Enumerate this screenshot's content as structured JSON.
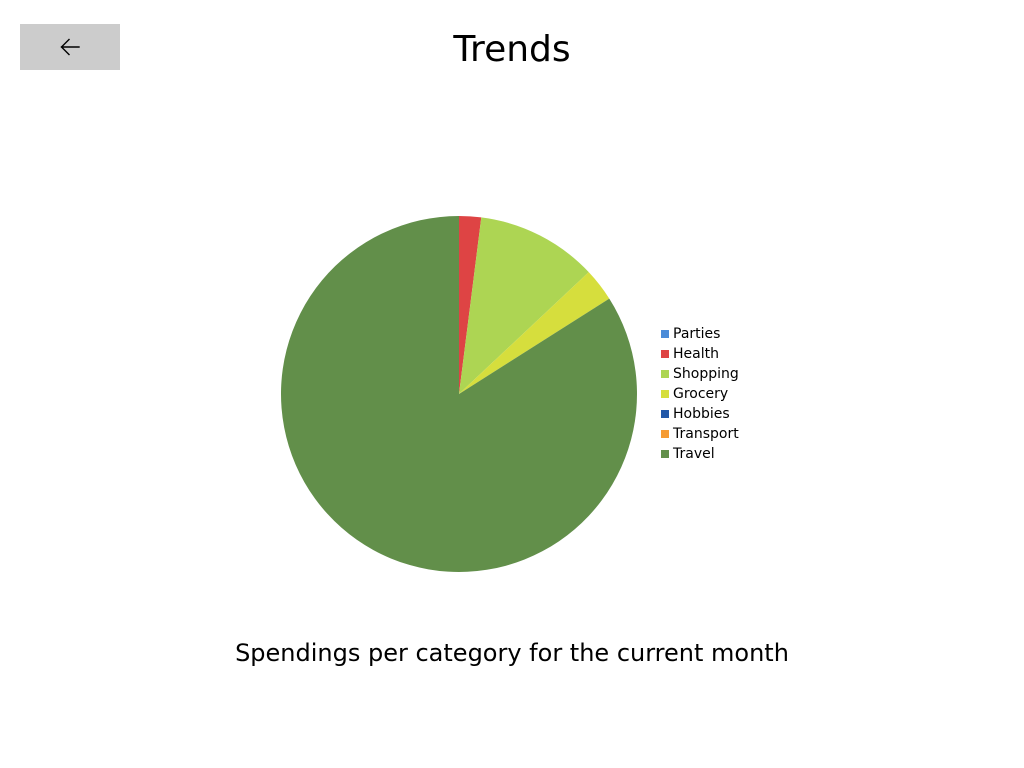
{
  "header": {
    "back_icon": "arrow-left-icon",
    "title": "Trends"
  },
  "chart_data": {
    "type": "pie",
    "title": "",
    "categories": [
      "Parties",
      "Health",
      "Shopping",
      "Grocery",
      "Hobbies",
      "Transport",
      "Travel"
    ],
    "values": [
      0,
      2,
      11,
      3,
      0,
      0,
      84
    ],
    "colors": [
      "#4a8bd8",
      "#de4444",
      "#add553",
      "#d6de3d",
      "#2258a8",
      "#f59b33",
      "#628f4a"
    ],
    "legend_position": "right"
  },
  "caption": "Spendings per category for the current month"
}
